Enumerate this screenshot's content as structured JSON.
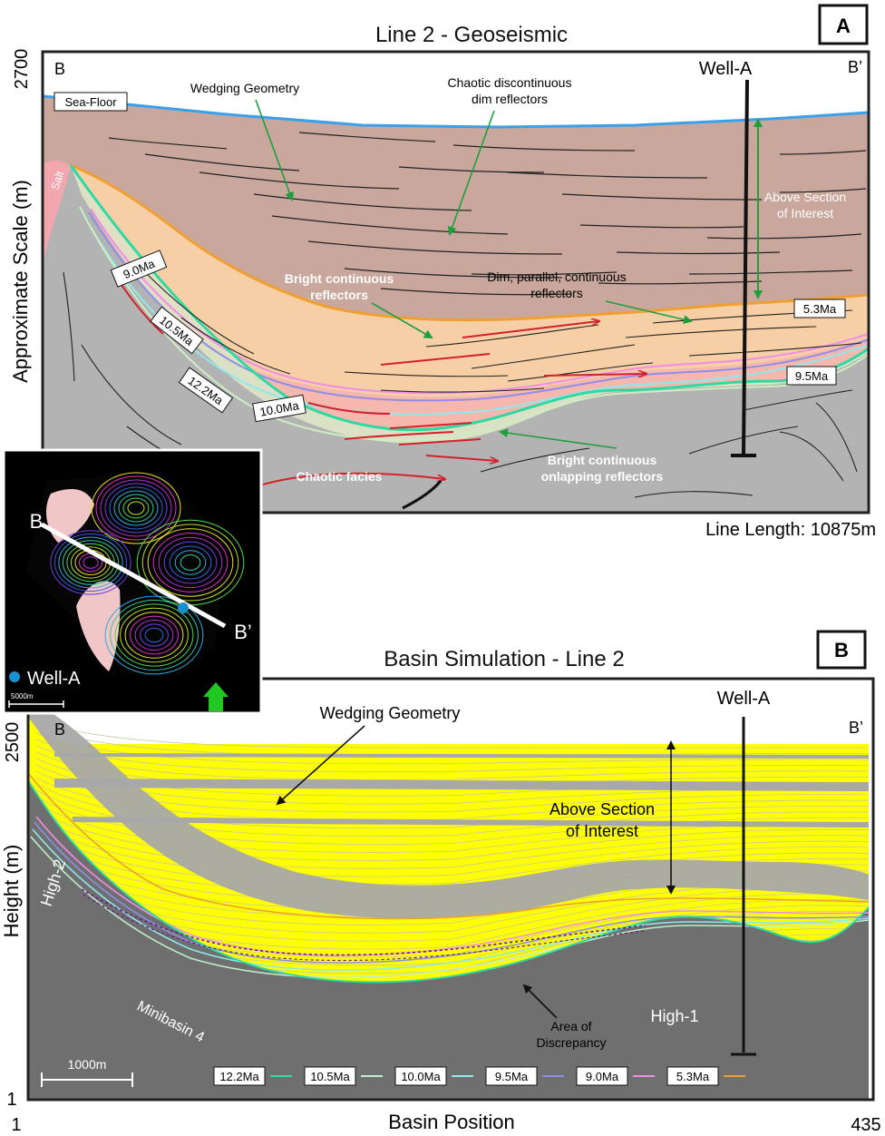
{
  "panel_a": {
    "badge": "A",
    "title": "Line 2 - Geoseismic",
    "y_axis_label": "Approximate Scale (m)",
    "y_top_value": "2700",
    "left_end": "B",
    "right_end": "B’",
    "well": "Well-A",
    "sea_floor": "Sea-Floor",
    "salt": "Salt",
    "line_length": "Line Length: 10875m",
    "annotations": {
      "wedging": "Wedging Geometry",
      "chaotic_dim_1": "Chaotic discontinuous",
      "chaotic_dim_2": "dim reflectors",
      "above_1": "Above Section",
      "above_2": "of Interest",
      "bright_1": "Bright continuous",
      "bright_2": "reflectors",
      "dim_1": "Dim, parallel, continuous",
      "dim_2": "reflectors",
      "chaotic_facies": "Chaotic facies",
      "onlap_1": "Bright continuous",
      "onlap_2": "onlapping reflectors"
    },
    "ages": {
      "a90": "9.0Ma",
      "a105": "10.5Ma",
      "a122": "12.2Ma",
      "a100": "10.0Ma",
      "a53": "5.3Ma",
      "a95": "9.5Ma"
    }
  },
  "inset": {
    "b_label": "B",
    "bp_label": "B’",
    "well_legend": "Well-A",
    "scale": "5000m"
  },
  "panel_b": {
    "badge": "B",
    "title": "Basin Simulation - Line 2",
    "y_axis_label": "Height (m)",
    "y_top_value": "2500",
    "y_bottom_value": "1",
    "x_axis_label": "Basin Position",
    "x_left_value": "1",
    "x_right_value": "435",
    "left_end": "B",
    "right_end": "B’",
    "well": "Well-A",
    "annotations": {
      "wedging": "Wedging Geometry",
      "above_1": "Above Section",
      "above_2": "of Interest",
      "high2": "High-2",
      "minibasin": "Minibasin 4",
      "high1": "High-1",
      "discrepancy_1": "Area of",
      "discrepancy_2": "Discrepancy"
    },
    "scale_bar": "1000m",
    "legend": [
      {
        "label": "12.2Ma",
        "color": "#2fd9a2"
      },
      {
        "label": "10.5Ma",
        "color": "#bfeeca"
      },
      {
        "label": "10.0Ma",
        "color": "#8fe8ee"
      },
      {
        "label": "9.5Ma",
        "color": "#8f8fe8"
      },
      {
        "label": "9.0Ma",
        "color": "#f08ee6"
      },
      {
        "label": "5.3Ma",
        "color": "#f0a030"
      }
    ]
  }
}
